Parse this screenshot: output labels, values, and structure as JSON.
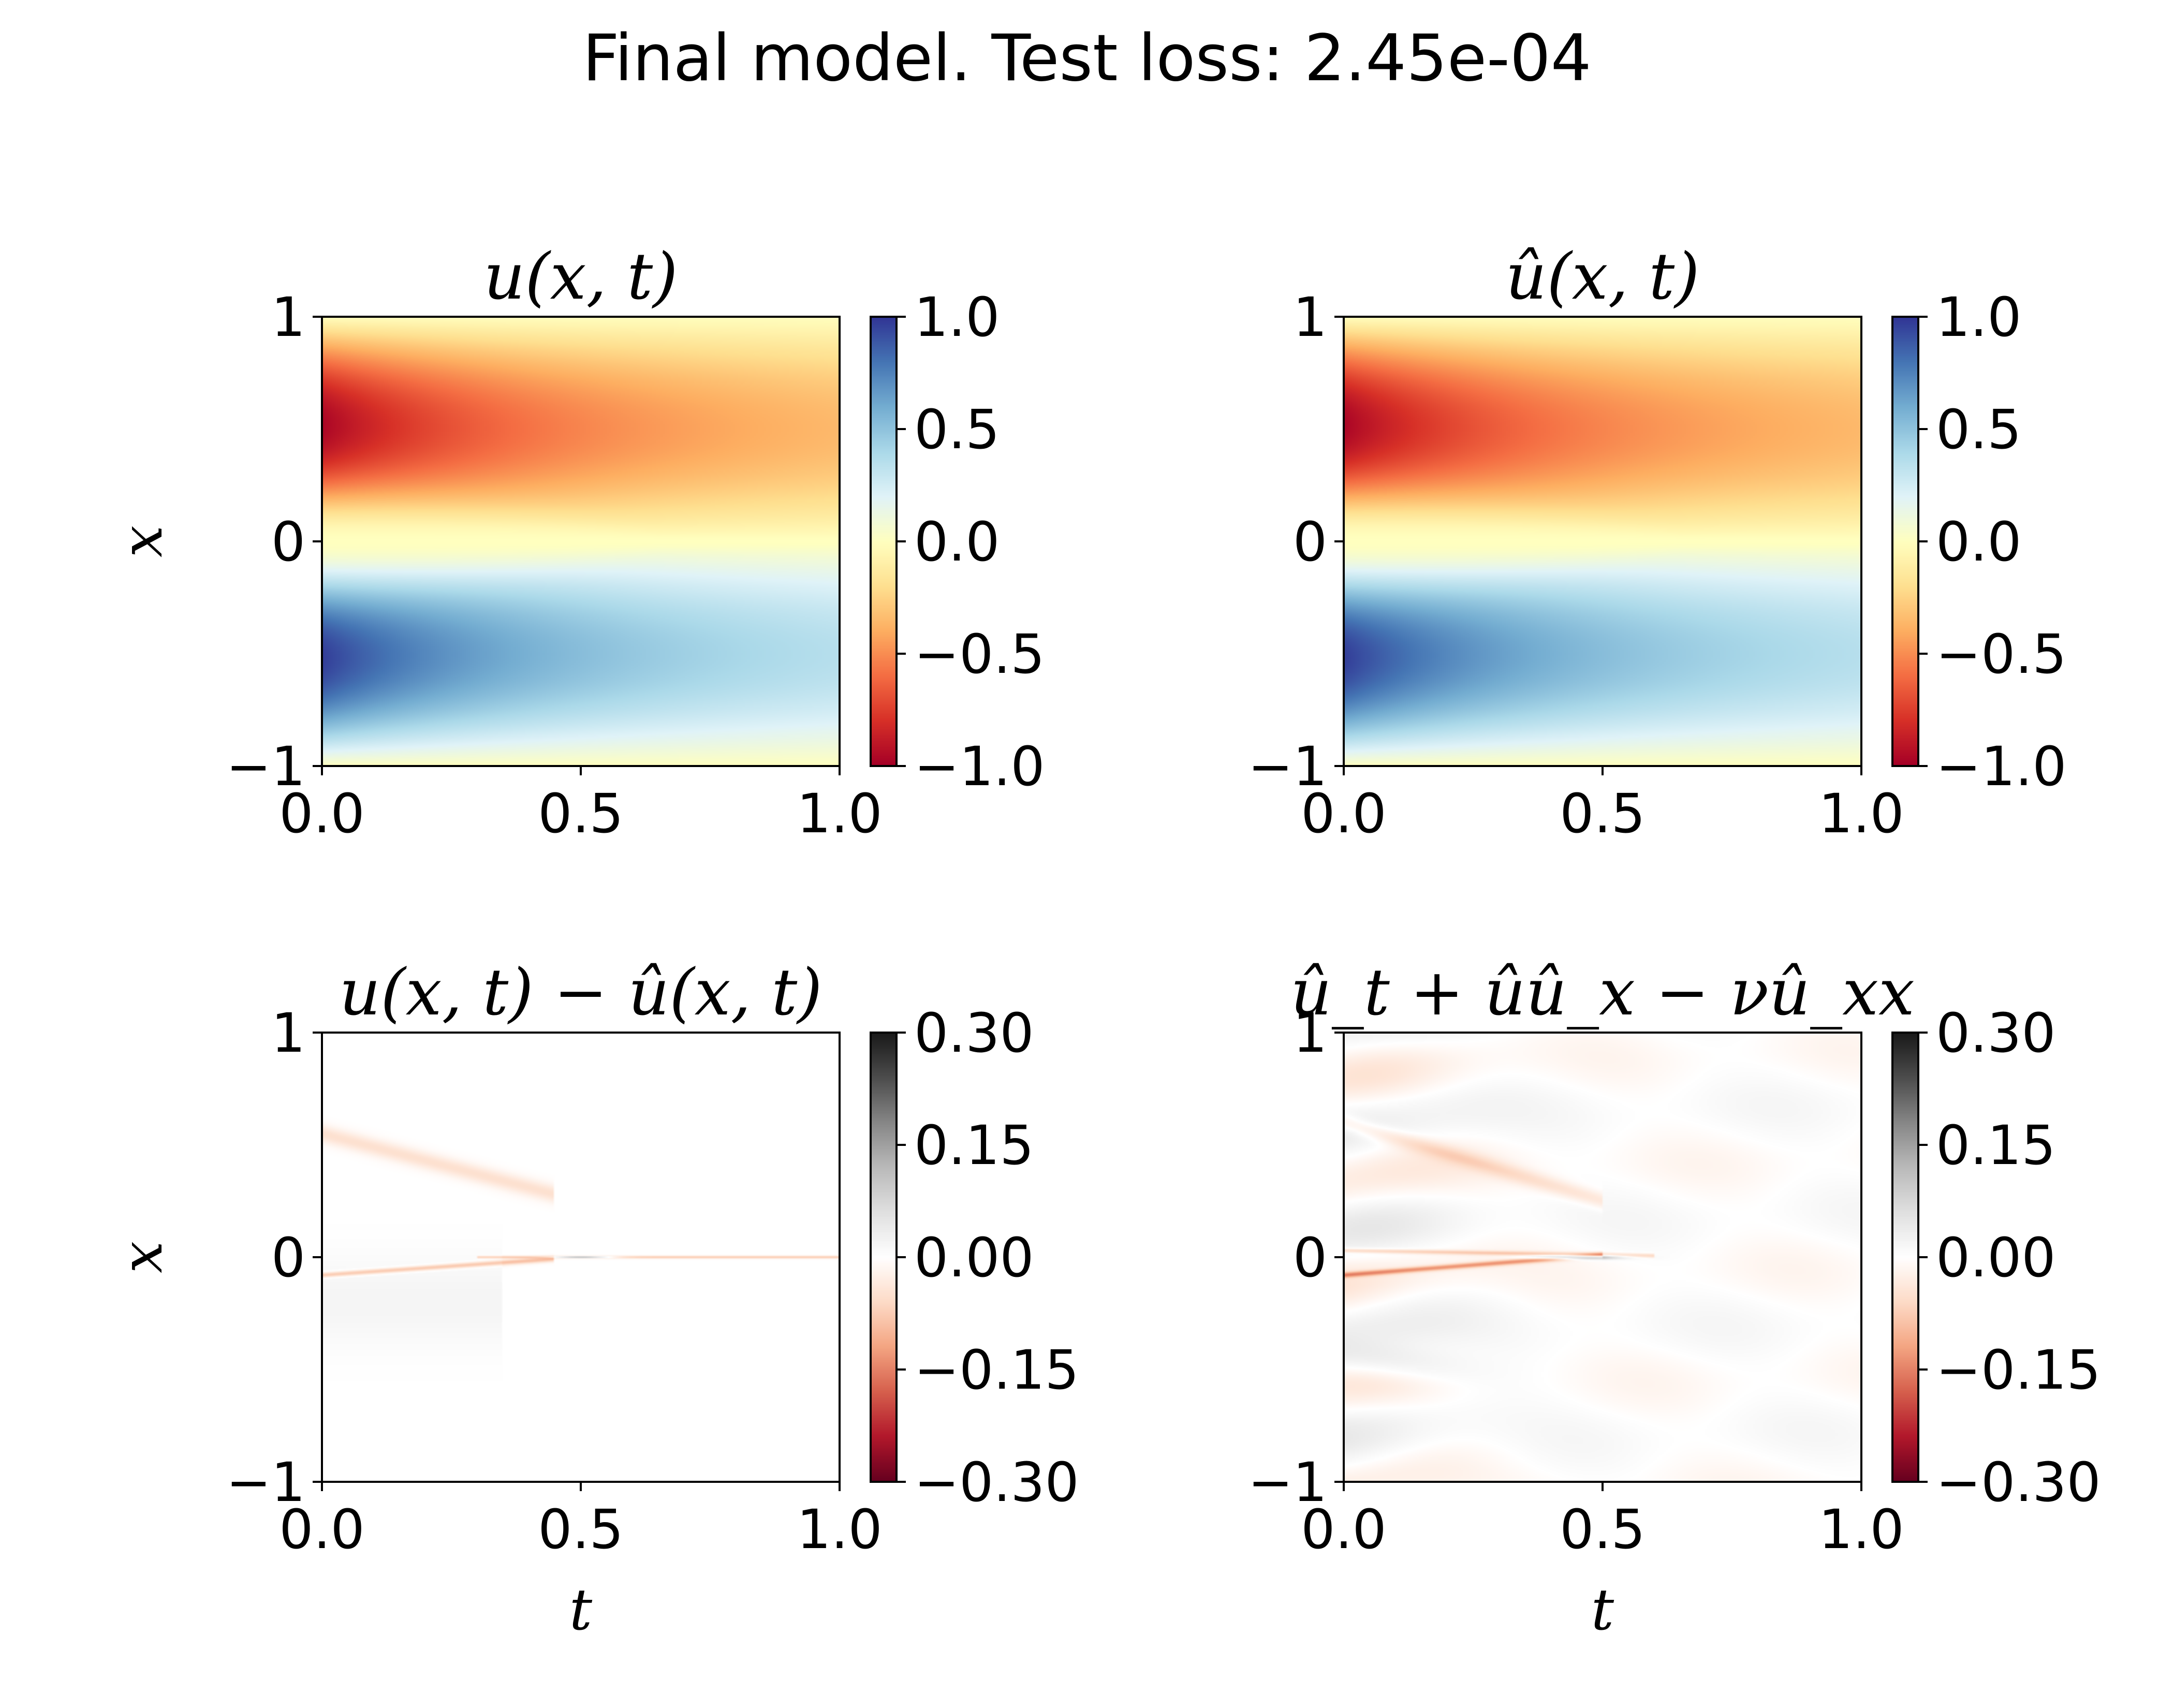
{
  "figure": {
    "suptitle": "Final model. Test loss: 2.45e-04"
  },
  "colormaps": {
    "RdYlBu": [
      "#a50026",
      "#d73027",
      "#f46d43",
      "#fdae61",
      "#fee090",
      "#ffffbf",
      "#e0f3f8",
      "#abd9e9",
      "#74add1",
      "#4575b4",
      "#313695"
    ],
    "RdGy_diverging": [
      "#67001f",
      "#b2182b",
      "#d6604d",
      "#f4a582",
      "#fddbc7",
      "#ffffff",
      "#e0e0e0",
      "#bababa",
      "#878787",
      "#4d4d4d",
      "#1a1a1a"
    ]
  },
  "chart_data": [
    {
      "type": "heatmap",
      "panel": "top-left",
      "title": "u(x, t)",
      "xlabel": "",
      "ylabel": "x",
      "xlim": [
        0.0,
        1.0
      ],
      "ylim": [
        -1,
        1
      ],
      "xticks": [
        "0.0",
        "0.5",
        "1.0"
      ],
      "yticks": [
        "−1",
        "0",
        "1"
      ],
      "colormap": "RdYlBu",
      "clim": [
        -1.0,
        1.0
      ],
      "colorbar_ticks": [
        "1.0",
        "0.5",
        "0.0",
        "−0.5",
        "−1.0"
      ],
      "field": "burgers_solution"
    },
    {
      "type": "heatmap",
      "panel": "top-right",
      "title": "û(x, t)",
      "xlabel": "",
      "ylabel": "",
      "xlim": [
        0.0,
        1.0
      ],
      "ylim": [
        -1,
        1
      ],
      "xticks": [
        "0.0",
        "0.5",
        "1.0"
      ],
      "yticks": [
        "−1",
        "0",
        "1"
      ],
      "colormap": "RdYlBu",
      "clim": [
        -1.0,
        1.0
      ],
      "colorbar_ticks": [
        "1.0",
        "0.5",
        "0.0",
        "−0.5",
        "−1.0"
      ],
      "field": "burgers_prediction"
    },
    {
      "type": "heatmap",
      "panel": "bottom-left",
      "title": "u(x, t) − û(x, t)",
      "xlabel": "t",
      "ylabel": "x",
      "xlim": [
        0.0,
        1.0
      ],
      "ylim": [
        -1,
        1
      ],
      "xticks": [
        "0.0",
        "0.5",
        "1.0"
      ],
      "yticks": [
        "−1",
        "0",
        "1"
      ],
      "colormap": "RdGy_diverging",
      "clim": [
        -0.3,
        0.3
      ],
      "colorbar_ticks": [
        "0.30",
        "0.15",
        "0.00",
        "−0.15",
        "−0.30"
      ],
      "field": "error"
    },
    {
      "type": "heatmap",
      "panel": "bottom-right",
      "title": "û_t + ûû_x − νû_xx",
      "xlabel": "t",
      "ylabel": "",
      "xlim": [
        0.0,
        1.0
      ],
      "ylim": [
        -1,
        1
      ],
      "xticks": [
        "0.0",
        "0.5",
        "1.0"
      ],
      "yticks": [
        "−1",
        "0",
        "1"
      ],
      "colormap": "RdGy_diverging",
      "clim": [
        -0.3,
        0.3
      ],
      "colorbar_ticks": [
        "0.30",
        "0.15",
        "0.00",
        "−0.15",
        "−0.30"
      ],
      "field": "residual"
    }
  ]
}
